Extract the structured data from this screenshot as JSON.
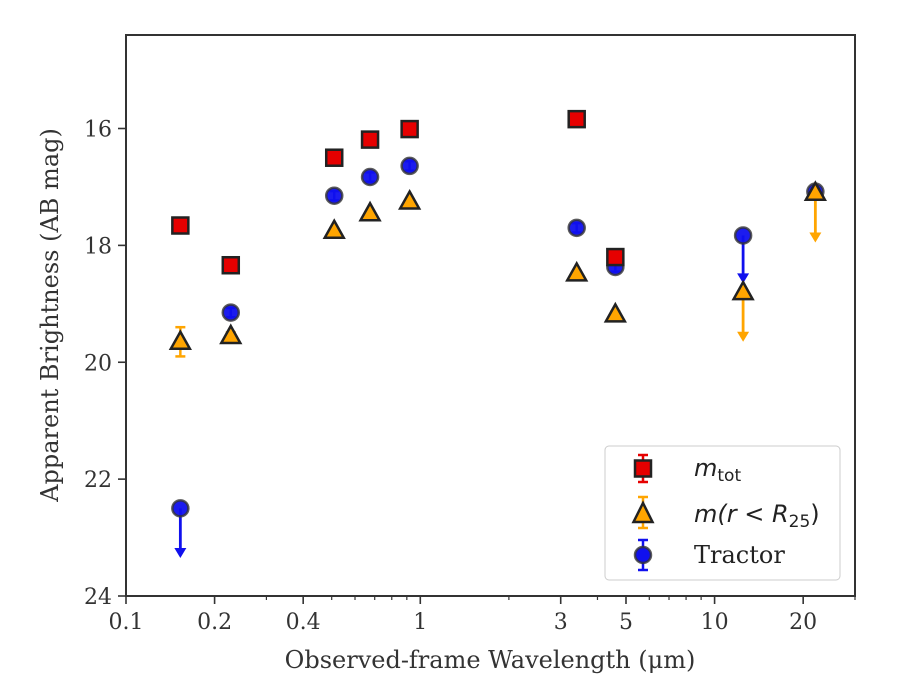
{
  "chart_data": {
    "type": "scatter",
    "title": "",
    "xlabel": "Observed-frame Wavelength (μm)",
    "ylabel": "Apparent Brightness (AB mag)",
    "xscale": "log",
    "xlim": [
      0.1,
      30
    ],
    "ylim": [
      24,
      14.4
    ],
    "y_inverted": true,
    "x_ticks": [
      {
        "value": 0.1,
        "label": "0.1"
      },
      {
        "value": 0.2,
        "label": "0.2"
      },
      {
        "value": 0.4,
        "label": "0.4"
      },
      {
        "value": 1,
        "label": "1"
      },
      {
        "value": 3,
        "label": "3"
      },
      {
        "value": 5,
        "label": "5"
      },
      {
        "value": 10,
        "label": "10"
      },
      {
        "value": 20,
        "label": "20"
      }
    ],
    "y_ticks": [
      {
        "value": 16,
        "label": "16"
      },
      {
        "value": 18,
        "label": "18"
      },
      {
        "value": 20,
        "label": "20"
      },
      {
        "value": 22,
        "label": "22"
      },
      {
        "value": 24,
        "label": "24"
      }
    ],
    "legend_placement": "lower-right",
    "series": [
      {
        "name": "m_tot",
        "legend_parts": [
          "m",
          "tot"
        ],
        "marker": "square",
        "color": "#e60000",
        "edge_color": "#222222",
        "points": [
          {
            "x": 0.153,
            "y": 17.66,
            "err": 0.05
          },
          {
            "x": 0.227,
            "y": 18.34,
            "err": 0.05
          },
          {
            "x": 0.51,
            "y": 16.5,
            "err": 0.04
          },
          {
            "x": 0.675,
            "y": 16.19,
            "err": 0.04
          },
          {
            "x": 0.92,
            "y": 16.01,
            "err": 0.04
          },
          {
            "x": 3.4,
            "y": 15.84,
            "err": 0.04
          },
          {
            "x": 4.6,
            "y": 18.2,
            "err": 0.1
          }
        ]
      },
      {
        "name": "m(r < R25)",
        "legend_parts": [
          "m(r < R",
          "25",
          ")"
        ],
        "marker": "triangle",
        "color": "#ffa500",
        "edge_color": "#222222",
        "points": [
          {
            "x": 0.153,
            "y": 19.65,
            "err": 0.25
          },
          {
            "x": 0.227,
            "y": 19.55,
            "err": 0.06
          },
          {
            "x": 0.51,
            "y": 17.75,
            "err": 0.04
          },
          {
            "x": 0.675,
            "y": 17.45,
            "err": 0.04
          },
          {
            "x": 0.92,
            "y": 17.25,
            "err": 0.04
          },
          {
            "x": 3.4,
            "y": 18.48,
            "err": 0.04
          },
          {
            "x": 4.6,
            "y": 19.18,
            "err": 0.05
          },
          {
            "x": 12.5,
            "y": 18.8,
            "upper_limit": true,
            "arrow_to": 19.65
          },
          {
            "x": 22.0,
            "y": 17.1,
            "upper_limit": true,
            "arrow_to": 17.95
          }
        ]
      },
      {
        "name": "Tractor",
        "legend_parts": [
          "Tractor"
        ],
        "marker": "circle",
        "color": "#1010ee",
        "edge_color": "#333333",
        "points": [
          {
            "x": 0.153,
            "y": 22.5,
            "upper_limit": true,
            "arrow_to": 23.35
          },
          {
            "x": 0.227,
            "y": 19.15,
            "err": 0.08
          },
          {
            "x": 0.51,
            "y": 17.15,
            "err": 0.08
          },
          {
            "x": 0.675,
            "y": 16.83,
            "err": 0.08
          },
          {
            "x": 0.92,
            "y": 16.64,
            "err": 0.08
          },
          {
            "x": 3.4,
            "y": 17.7,
            "err": 0.08
          },
          {
            "x": 4.6,
            "y": 18.37,
            "err": 0.08
          },
          {
            "x": 12.5,
            "y": 17.83,
            "upper_limit": true,
            "arrow_to": 18.65
          },
          {
            "x": 22.0,
            "y": 17.08,
            "err": 0.06
          }
        ]
      }
    ]
  }
}
